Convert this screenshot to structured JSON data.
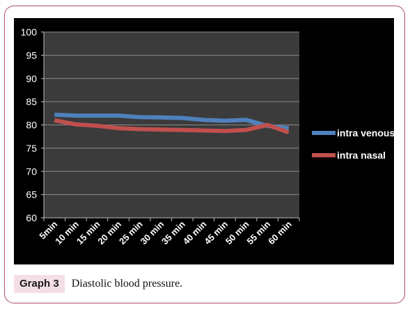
{
  "chart_data": {
    "type": "line",
    "categories": [
      "5min",
      "10 min",
      "15 min",
      "20 min",
      "25 min",
      "30 min",
      "35 min",
      "40 min",
      "45 min",
      "50 min",
      "55 min",
      "60 min"
    ],
    "series": [
      {
        "name": "intra venous",
        "color": "#4f81bd",
        "values": [
          82.2,
          82.0,
          82.0,
          82.0,
          81.7,
          81.6,
          81.5,
          81.1,
          80.9,
          81.1,
          79.8,
          79.3
        ]
      },
      {
        "name": "intra nasal",
        "color": "#c0504d",
        "values": [
          81.0,
          80.1,
          79.8,
          79.3,
          79.1,
          79.0,
          78.9,
          78.8,
          78.7,
          78.9,
          80.0,
          78.4
        ]
      }
    ],
    "ylim": [
      60,
      100
    ],
    "yticks": [
      60,
      65,
      70,
      75,
      80,
      85,
      90,
      95,
      100
    ],
    "grid": true,
    "legend_position": "right",
    "colors": {
      "plot_background": "#3b3b3b",
      "chart_background": "#000000",
      "text": "#ffffff",
      "grid": "#8a8a8a"
    }
  },
  "caption": {
    "label": "Graph 3",
    "text": "Diastolic blood pressure."
  }
}
